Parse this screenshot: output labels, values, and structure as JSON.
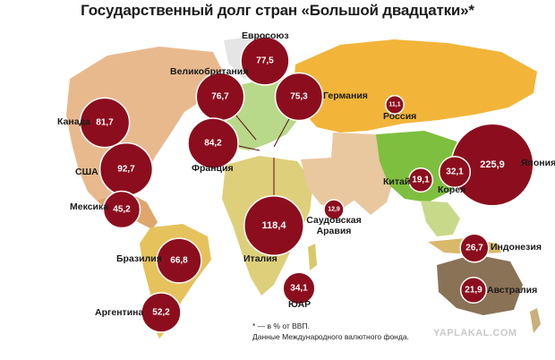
{
  "title": "Государственный долг стран «Большой двадцатки»*",
  "footnote": {
    "line1": "* — в % от ВВП.",
    "line2": "Данные Международного валютного фонда."
  },
  "watermark": "YAPLAKAL.COM",
  "colors": {
    "bubble": "#8c0e1e",
    "bubble_stroke": "#ffffff",
    "ocean": "#ffffff",
    "russia": "#f2b53a",
    "china": "#7fbf3f",
    "australia": "#8a7256",
    "north_america": "#e9b98e",
    "south_america": "#e6c25c",
    "africa": "#ded07a",
    "europe": "#b9d98a",
    "asia_other": "#e9c8a0"
  },
  "countries": [
    {
      "id": "eurozone",
      "name": "Евросоюз",
      "value": "77,5"
    },
    {
      "id": "uk",
      "name": "Великобритания",
      "value": "76,7"
    },
    {
      "id": "germany",
      "name": "Германия",
      "value": "75,3"
    },
    {
      "id": "russia",
      "name": "Россия",
      "value": "11,1"
    },
    {
      "id": "canada",
      "name": "Канада",
      "value": "81,7"
    },
    {
      "id": "france",
      "name": "Франция",
      "value": "84,2"
    },
    {
      "id": "usa",
      "name": "США",
      "value": "92,7"
    },
    {
      "id": "japan",
      "name": "Япония",
      "value": "225,9"
    },
    {
      "id": "china",
      "name": "Китай",
      "value": "19,1"
    },
    {
      "id": "korea",
      "name": "Корея",
      "value": "32,1"
    },
    {
      "id": "mexico",
      "name": "Мексика",
      "value": "45,2"
    },
    {
      "id": "saudi",
      "name": "Саудовская Аравия",
      "value": "12,9"
    },
    {
      "id": "italy",
      "name": "Италия",
      "value": "118,4"
    },
    {
      "id": "indonesia",
      "name": "Индонезия",
      "value": "26,7"
    },
    {
      "id": "brazil",
      "name": "Бразилия",
      "value": "66,8"
    },
    {
      "id": "australia",
      "name": "Австралия",
      "value": "21,9"
    },
    {
      "id": "sar",
      "name": "ЮАР",
      "value": "34,1"
    },
    {
      "id": "argentina",
      "name": "Аргентина",
      "value": "52,2"
    }
  ]
}
